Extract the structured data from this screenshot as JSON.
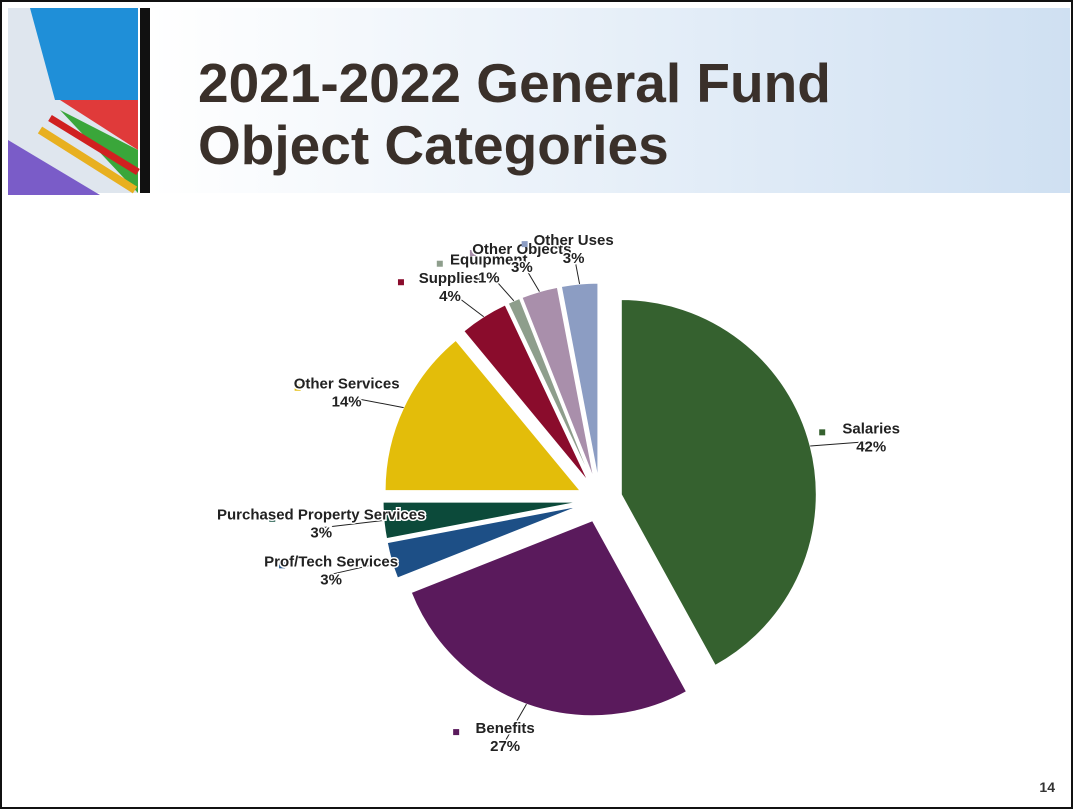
{
  "chart_data": {
    "type": "pie",
    "title": "2021-2022 General Fund Object Categories",
    "categories": [
      "Salaries",
      "Benefits",
      "Prof/Tech Services",
      "Purchased Property Services",
      "Other Services",
      "Supplies",
      "Equipment",
      "Other Objects",
      "Other Uses"
    ],
    "values": [
      42,
      27,
      3,
      3,
      14,
      4,
      1,
      3,
      3
    ],
    "value_labels": [
      "42%",
      "27%",
      "3%",
      "3%",
      "14%",
      "4%",
      "1%",
      "3%",
      "3%"
    ],
    "colors": [
      "#35612f",
      "#5a1a5c",
      "#1d4f86",
      "#0c4a3a",
      "#e3bd0a",
      "#8a0c2c",
      "#8e9e8c",
      "#a98fab",
      "#8c9dc3"
    ]
  },
  "page_number": 14
}
